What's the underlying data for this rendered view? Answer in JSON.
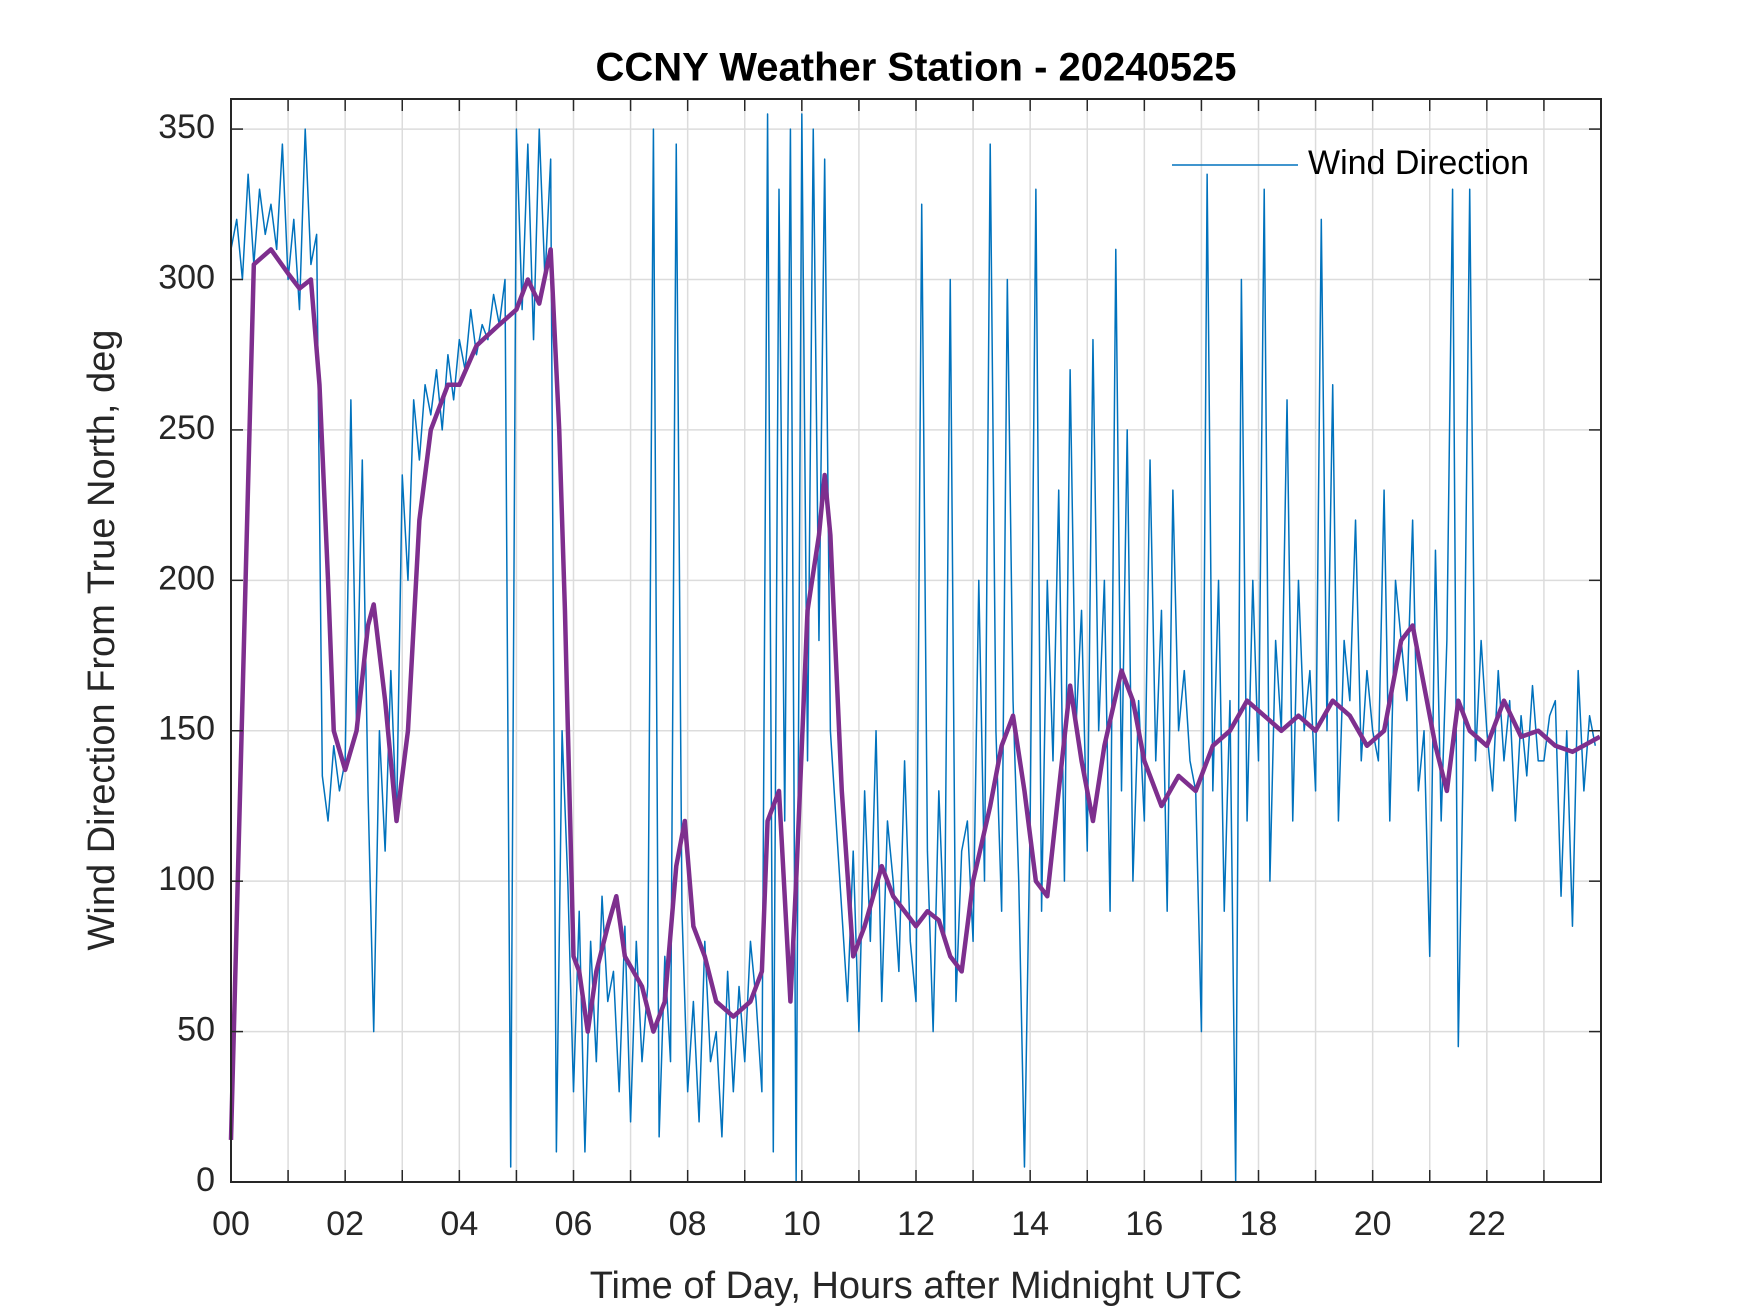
{
  "chart_data": {
    "type": "line",
    "title": "CCNY Weather Station - 20240525",
    "xlabel": "Time of Day, Hours after Midnight UTC",
    "ylabel": "Wind Direction From True North, deg",
    "xlim": [
      0,
      24
    ],
    "ylim": [
      0,
      360
    ],
    "xticks": [
      {
        "value": 0,
        "label": "00"
      },
      {
        "value": 2,
        "label": "02"
      },
      {
        "value": 4,
        "label": "04"
      },
      {
        "value": 6,
        "label": "06"
      },
      {
        "value": 8,
        "label": "08"
      },
      {
        "value": 10,
        "label": "10"
      },
      {
        "value": 12,
        "label": "12"
      },
      {
        "value": 14,
        "label": "14"
      },
      {
        "value": 16,
        "label": "16"
      },
      {
        "value": 18,
        "label": "18"
      },
      {
        "value": 20,
        "label": "20"
      },
      {
        "value": 22,
        "label": "22"
      }
    ],
    "xminorticks": [
      1,
      3,
      5,
      7,
      9,
      11,
      13,
      15,
      17,
      19,
      21,
      23
    ],
    "yticks": [
      0,
      50,
      100,
      150,
      200,
      250,
      300,
      350
    ],
    "grid": true,
    "legend": "northeast",
    "series": [
      {
        "name": "Wind Direction",
        "color": "#0072BD",
        "width": 1.5,
        "x": [
          0,
          0.1,
          0.2,
          0.3,
          0.4,
          0.5,
          0.6,
          0.7,
          0.8,
          0.9,
          1,
          1.1,
          1.2,
          1.3,
          1.4,
          1.5,
          1.6,
          1.7,
          1.8,
          1.9,
          2,
          2.1,
          2.2,
          2.3,
          2.4,
          2.5,
          2.6,
          2.7,
          2.8,
          2.9,
          3,
          3.1,
          3.2,
          3.3,
          3.4,
          3.5,
          3.6,
          3.7,
          3.8,
          3.9,
          4,
          4.1,
          4.2,
          4.3,
          4.4,
          4.5,
          4.6,
          4.7,
          4.8,
          4.9,
          5,
          5.1,
          5.2,
          5.3,
          5.4,
          5.5,
          5.6,
          5.7,
          5.8,
          5.9,
          6,
          6.1,
          6.2,
          6.3,
          6.4,
          6.5,
          6.6,
          6.7,
          6.8,
          6.9,
          7,
          7.1,
          7.2,
          7.3,
          7.4,
          7.5,
          7.6,
          7.7,
          7.8,
          7.9,
          8,
          8.1,
          8.2,
          8.3,
          8.4,
          8.5,
          8.6,
          8.7,
          8.8,
          8.9,
          9,
          9.1,
          9.2,
          9.3,
          9.4,
          9.5,
          9.6,
          9.7,
          9.8,
          9.9,
          10,
          10.1,
          10.2,
          10.3,
          10.4,
          10.5,
          10.6,
          10.7,
          10.8,
          10.9,
          11,
          11.1,
          11.2,
          11.3,
          11.4,
          11.5,
          11.6,
          11.7,
          11.8,
          11.9,
          12,
          12.1,
          12.2,
          12.3,
          12.4,
          12.5,
          12.6,
          12.7,
          12.8,
          12.9,
          13,
          13.1,
          13.2,
          13.3,
          13.4,
          13.5,
          13.6,
          13.7,
          13.8,
          13.9,
          14,
          14.1,
          14.2,
          14.3,
          14.4,
          14.5,
          14.6,
          14.7,
          14.8,
          14.9,
          15,
          15.1,
          15.2,
          15.3,
          15.4,
          15.5,
          15.6,
          15.7,
          15.8,
          15.9,
          16,
          16.1,
          16.2,
          16.3,
          16.4,
          16.5,
          16.6,
          16.7,
          16.8,
          16.9,
          17,
          17.1,
          17.2,
          17.3,
          17.4,
          17.5,
          17.6,
          17.7,
          17.8,
          17.9,
          18,
          18.1,
          18.2,
          18.3,
          18.4,
          18.5,
          18.6,
          18.7,
          18.8,
          18.9,
          19,
          19.1,
          19.2,
          19.3,
          19.4,
          19.5,
          19.6,
          19.7,
          19.8,
          19.9,
          20,
          20.1,
          20.2,
          20.3,
          20.4,
          20.5,
          20.6,
          20.7,
          20.8,
          20.9,
          21,
          21.1,
          21.2,
          21.3,
          21.4,
          21.5,
          21.6,
          21.7,
          21.8,
          21.9,
          22,
          22.1,
          22.2,
          22.3,
          22.4,
          22.5,
          22.6,
          22.7,
          22.8,
          22.9,
          23,
          23.1,
          23.2,
          23.3,
          23.4,
          23.5,
          23.6,
          23.7,
          23.8,
          23.9
        ],
        "values": [
          310,
          320,
          300,
          335,
          305,
          330,
          315,
          325,
          310,
          345,
          300,
          320,
          290,
          350,
          305,
          315,
          135,
          120,
          145,
          130,
          140,
          260,
          150,
          240,
          130,
          50,
          150,
          110,
          170,
          120,
          235,
          200,
          260,
          240,
          265,
          255,
          270,
          250,
          275,
          260,
          280,
          270,
          290,
          275,
          285,
          280,
          295,
          285,
          300,
          5,
          350,
          290,
          345,
          280,
          350,
          300,
          340,
          10,
          150,
          100,
          30,
          90,
          10,
          80,
          40,
          95,
          60,
          70,
          30,
          85,
          20,
          80,
          40,
          65,
          350,
          15,
          75,
          40,
          345,
          90,
          30,
          60,
          20,
          80,
          40,
          50,
          15,
          70,
          30,
          65,
          40,
          80,
          60,
          30,
          355,
          10,
          330,
          120,
          350,
          0,
          355,
          140,
          350,
          180,
          340,
          150,
          120,
          90,
          60,
          110,
          50,
          130,
          80,
          150,
          60,
          120,
          100,
          70,
          140,
          80,
          60,
          325,
          110,
          50,
          130,
          80,
          300,
          60,
          110,
          120,
          80,
          200,
          100,
          345,
          150,
          90,
          300,
          160,
          100,
          5,
          120,
          330,
          90,
          200,
          140,
          230,
          100,
          270,
          150,
          190,
          110,
          280,
          150,
          200,
          90,
          310,
          130,
          250,
          100,
          160,
          120,
          240,
          140,
          190,
          90,
          230,
          150,
          170,
          140,
          130,
          50,
          335,
          130,
          200,
          90,
          160,
          0,
          300,
          120,
          200,
          140,
          330,
          100,
          180,
          150,
          260,
          120,
          200,
          150,
          170,
          130,
          320,
          150,
          265,
          120,
          180,
          160,
          220,
          140,
          170,
          150,
          140,
          230,
          120,
          200,
          180,
          160,
          220,
          130,
          150,
          75,
          210,
          120,
          180,
          330,
          45,
          155,
          330,
          140,
          180,
          150,
          130,
          170,
          140,
          160,
          120,
          155,
          135,
          165,
          140,
          140,
          155,
          160,
          95,
          150,
          85,
          170,
          130,
          155,
          145
        ]
      },
      {
        "color": "#7E2F8E",
        "width": 4.5,
        "x": [
          0,
          0.4,
          0.7,
          1,
          1.2,
          1.4,
          1.55,
          1.7,
          1.8,
          2,
          2.2,
          2.4,
          2.5,
          2.7,
          2.9,
          3.1,
          3.3,
          3.5,
          3.8,
          4,
          4.3,
          4.7,
          5,
          5.2,
          5.4,
          5.6,
          5.75,
          5.85,
          6,
          6.1,
          6.25,
          6.4,
          6.6,
          6.75,
          6.9,
          7.2,
          7.4,
          7.6,
          7.8,
          7.95,
          8.1,
          8.3,
          8.5,
          8.8,
          9.1,
          9.3,
          9.4,
          9.6,
          9.8,
          9.9,
          10.1,
          10.3,
          10.4,
          10.5,
          10.7,
          10.9,
          11.1,
          11.4,
          11.6,
          11.8,
          12,
          12.2,
          12.4,
          12.6,
          12.8,
          13,
          13.3,
          13.5,
          13.7,
          13.9,
          14.1,
          14.3,
          14.5,
          14.7,
          14.9,
          15.1,
          15.3,
          15.6,
          15.8,
          16,
          16.3,
          16.6,
          16.9,
          17.2,
          17.5,
          17.8,
          18.1,
          18.4,
          18.7,
          19,
          19.3,
          19.6,
          19.9,
          20.2,
          20.5,
          20.7,
          20.9,
          21.1,
          21.3,
          21.5,
          21.7,
          22,
          22.3,
          22.6,
          22.9,
          23.2,
          23.5,
          23.98
        ],
        "values": [
          14,
          305,
          310,
          302,
          297,
          300,
          265,
          200,
          150,
          137,
          150,
          185,
          192,
          160,
          120,
          150,
          220,
          250,
          265,
          265,
          278,
          285,
          290,
          300,
          292,
          310,
          250,
          190,
          75,
          70,
          50,
          70,
          85,
          95,
          75,
          65,
          50,
          60,
          105,
          120,
          85,
          75,
          60,
          55,
          60,
          70,
          120,
          130,
          60,
          100,
          190,
          215,
          235,
          215,
          130,
          75,
          85,
          105,
          95,
          90,
          85,
          90,
          87,
          75,
          70,
          100,
          125,
          145,
          155,
          130,
          100,
          95,
          130,
          165,
          140,
          120,
          145,
          170,
          160,
          140,
          125,
          135,
          130,
          145,
          150,
          160,
          155,
          150,
          155,
          150,
          160,
          155,
          145,
          150,
          180,
          185,
          165,
          145,
          130,
          160,
          150,
          145,
          160,
          148,
          150,
          145,
          143,
          148
        ]
      }
    ]
  }
}
